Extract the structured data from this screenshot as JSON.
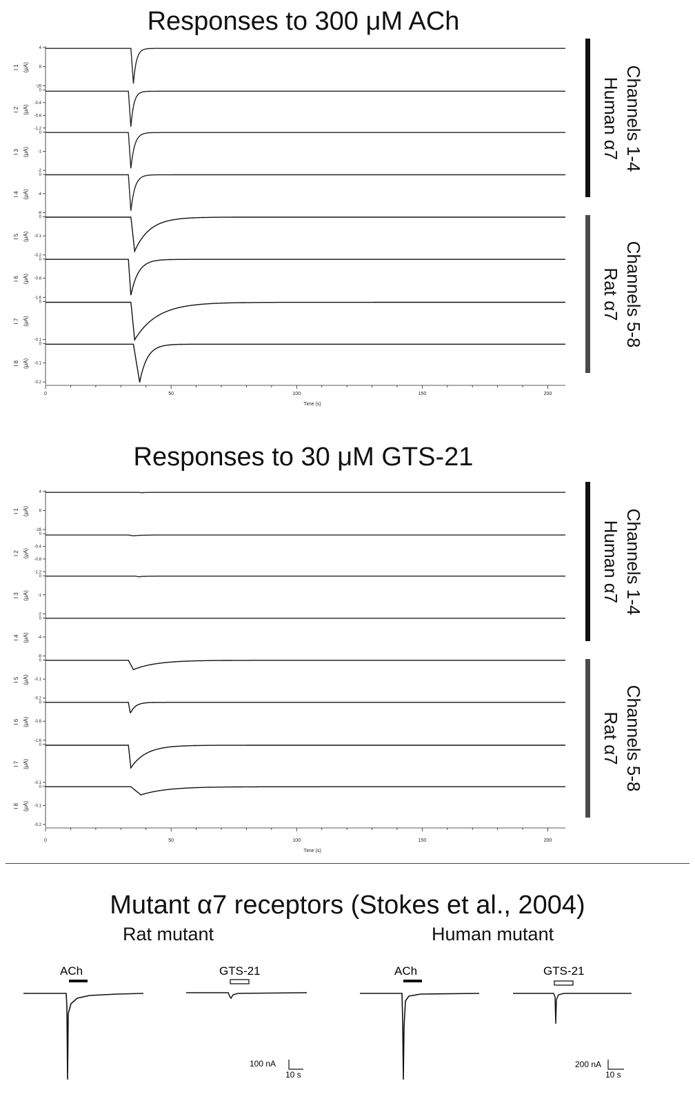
{
  "panels": [
    {
      "title": "Responses to 300 μM ACh",
      "xlabel": "Time (s)",
      "xticks": [
        "0",
        "50",
        "100",
        "150",
        "200"
      ],
      "groups": [
        {
          "line1": "Channels 1-4",
          "line2": "Human α7",
          "color": "#111111"
        },
        {
          "line1": "Channels 5-8",
          "line2": "Rat α7",
          "color": "#4a4a4a"
        }
      ]
    },
    {
      "title": "Responses to 30 μM GTS-21",
      "xlabel": "Time (s)",
      "xticks": [
        "0",
        "50",
        "100",
        "150",
        "200"
      ],
      "groups": [
        {
          "line1": "Channels 1-4",
          "line2": "Human α7",
          "color": "#111111"
        },
        {
          "line1": "Channels 5-8",
          "line2": "Rat α7",
          "color": "#4a4a4a"
        }
      ]
    }
  ],
  "mutant": {
    "title": "Mutant α7 receptors (Stokes et al., 2004)",
    "rat_label": "Rat mutant",
    "human_label": "Human mutant",
    "ach_label": "ACh",
    "gts_label": "GTS-21",
    "rat_scale_amp": "100 nA",
    "rat_scale_time": "10 s",
    "human_scale_amp": "200 nA",
    "human_scale_time": "10 s"
  },
  "chart_data": [
    {
      "type": "line",
      "title": "Responses to 300 μM ACh",
      "xlabel": "Time (s)",
      "xlim": [
        0,
        207
      ],
      "channels": [
        {
          "name": "I 1",
          "unit": "(μA)",
          "yticks": [
            "4",
            "8",
            "-16"
          ],
          "peak": -16,
          "ylim": [
            -17.6,
            1
          ],
          "onset": 34,
          "peak_time": 35,
          "tau": 1.2
        },
        {
          "name": "I 2",
          "unit": "(μA)",
          "yticks": [
            "0",
            "-0.4",
            "-0.8",
            "-1.2"
          ],
          "peak": -1.3,
          "ylim": [
            -1.4,
            0.1
          ],
          "onset": 33,
          "peak_time": 34,
          "tau": 1.2
        },
        {
          "name": "I 3",
          "unit": "(μA)",
          "yticks": [
            "0",
            "-1",
            "-2"
          ],
          "peak": -2.1,
          "ylim": [
            -2.3,
            0.1
          ],
          "onset": 33,
          "peak_time": 34,
          "tau": 1.5
        },
        {
          "name": "I 4",
          "unit": "(μA)",
          "yticks": [
            "0",
            "-4",
            "-8"
          ],
          "peak": -8.6,
          "ylim": [
            -9.4,
            0.4
          ],
          "onset": 33,
          "peak_time": 34,
          "tau": 1.6
        },
        {
          "name": "I 5",
          "unit": "(μA)",
          "yticks": [
            "0",
            "-0.1",
            "-0.2"
          ],
          "peak": -0.2,
          "ylim": [
            -0.23,
            0.01
          ],
          "onset": 34,
          "peak_time": 35.5,
          "tau": 6
        },
        {
          "name": "I 6",
          "unit": "(μA)",
          "yticks": [
            "0",
            "-0.8",
            "-1.6"
          ],
          "peak": -1.55,
          "ylim": [
            -1.7,
            0.07
          ],
          "onset": 33,
          "peak_time": 34,
          "tau": 3
        },
        {
          "name": "I 7",
          "unit": "(μA)",
          "yticks": [
            "0",
            "-0.1"
          ],
          "peak": -0.165,
          "ylim": [
            -0.17,
            0.01
          ],
          "onset": 34,
          "peak_time": 35.5,
          "tau": 9
        },
        {
          "name": "I 8",
          "unit": "(μA)",
          "yticks": [
            "0",
            "-0.1",
            "-0.2"
          ],
          "peak": -0.21,
          "ylim": [
            -0.215,
            0.01
          ],
          "onset": 35,
          "peak_time": 37.5,
          "tau": 3
        }
      ]
    },
    {
      "type": "line",
      "title": "Responses to 30 μM GTS-21",
      "xlabel": "Time (s)",
      "xlim": [
        0,
        207
      ],
      "channels": [
        {
          "name": "I 1",
          "unit": "(μA)",
          "yticks": [
            "4",
            "8",
            "-16"
          ],
          "peak": -0.15,
          "ylim": [
            -17.6,
            1
          ],
          "onset": 37,
          "peak_time": 38,
          "tau": 2
        },
        {
          "name": "I 2",
          "unit": "(μA)",
          "yticks": [
            "0",
            "-0.4",
            "-0.8",
            "-1.2"
          ],
          "peak": -0.03,
          "ylim": [
            -1.4,
            0.1
          ],
          "onset": 33,
          "peak_time": 35,
          "tau": 3
        },
        {
          "name": "I 3",
          "unit": "(μA)",
          "yticks": [
            "0",
            "-1",
            "-2"
          ],
          "peak": -0.04,
          "ylim": [
            -2.3,
            0.1
          ],
          "onset": 36,
          "peak_time": 37,
          "tau": 2
        },
        {
          "name": "I 4",
          "unit": "(μA)",
          "yticks": [
            "0",
            "-4",
            "-8"
          ],
          "peak": 0,
          "ylim": [
            -9.4,
            0.4
          ],
          "onset": 33,
          "peak_time": 34,
          "tau": 1
        },
        {
          "name": "I 5",
          "unit": "(μA)",
          "yticks": [
            "0",
            "-0.1",
            "-0.2"
          ],
          "peak": -0.06,
          "ylim": [
            -0.25,
            0.01
          ],
          "onset": 33,
          "peak_time": 35,
          "tau": 9
        },
        {
          "name": "I 6",
          "unit": "(μA)",
          "yticks": [
            "0",
            "-0.8",
            "-1.6"
          ],
          "peak": -0.5,
          "ylim": [
            -1.8,
            0.07
          ],
          "onset": 33,
          "peak_time": 33.8,
          "tau": 2
        },
        {
          "name": "I 7",
          "unit": "(μA)",
          "yticks": [
            "0",
            "-0.1"
          ],
          "peak": -0.1,
          "ylim": [
            -0.17,
            0.01
          ],
          "onset": 33,
          "peak_time": 34,
          "tau": 6
        },
        {
          "name": "I 8",
          "unit": "(μA)",
          "yticks": [
            "0",
            "-0.1",
            "-0.2"
          ],
          "peak": -0.05,
          "ylim": [
            -0.24,
            0.01
          ],
          "onset": 34,
          "peak_time": 38,
          "tau": 10
        }
      ]
    }
  ]
}
